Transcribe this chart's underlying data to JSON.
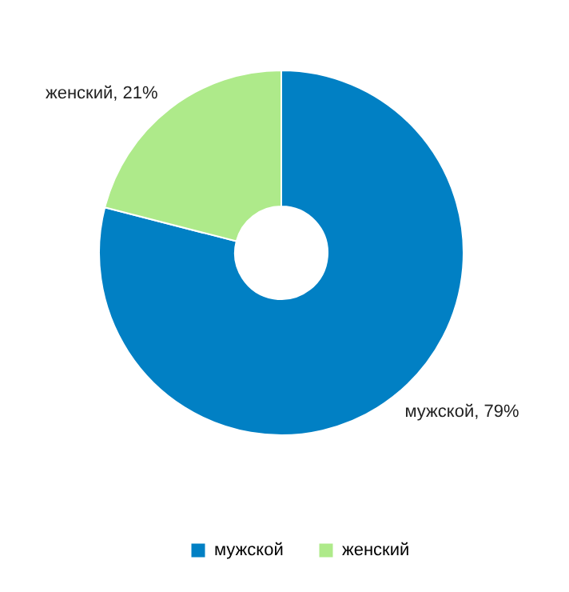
{
  "chart_data": {
    "type": "donut",
    "categories": [
      "мужской",
      "женский"
    ],
    "values": [
      79,
      21
    ],
    "colors": [
      "#0180c4",
      "#aeea8a"
    ],
    "value_labels": [
      "мужской, 79%",
      "женский, 21%"
    ],
    "legend": "bottom"
  }
}
